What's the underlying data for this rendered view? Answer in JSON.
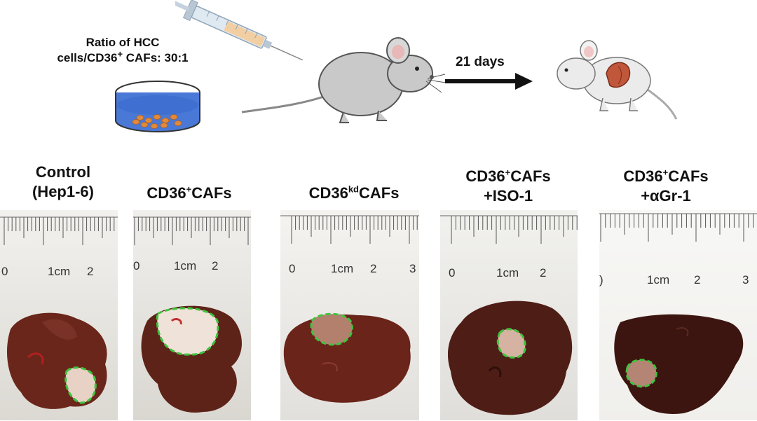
{
  "schematic": {
    "ratio_text_line1": "Ratio of HCC",
    "ratio_text_line2_prefix": "cells/CD36",
    "ratio_text_line2_sup": "+",
    "ratio_text_line2_suffix": " CAFs: 30:1",
    "arrow_label": "21 days"
  },
  "groups": [
    {
      "line1": "Control",
      "line2": "(Hep1-6)"
    },
    {
      "line1_prefix": "CD36",
      "line1_sup": "+",
      "line1_suffix": "CAFs"
    },
    {
      "line1_prefix": "CD36",
      "line1_sup": "kd",
      "line1_suffix": "CAFs"
    },
    {
      "line1_prefix": "CD36",
      "line1_sup": "+",
      "line1_suffix": "CAFs",
      "line2": "+ISO-1"
    },
    {
      "line1_prefix": "CD36",
      "line1_sup": "+",
      "line1_suffix": "CAFs",
      "line2": "+αGr-1"
    }
  ],
  "rulers": [
    {
      "labels": [
        "0",
        "1cm",
        "2"
      ]
    },
    {
      "labels": [
        "0",
        "1cm",
        "2"
      ]
    },
    {
      "labels": [
        "0",
        "1cm",
        "2",
        "3"
      ]
    },
    {
      "labels": [
        "0",
        "1cm",
        "2"
      ]
    },
    {
      "labels": [
        ")",
        "1cm",
        "2",
        "3"
      ]
    }
  ],
  "colors": {
    "liver": "#5a1f14",
    "liver_highlight": "#7a3226",
    "tumor_outline": "#3ec43e",
    "dish_fill": "#3f6fd0",
    "cells": "#e08a3a",
    "liver_icon": "#c0573a"
  }
}
